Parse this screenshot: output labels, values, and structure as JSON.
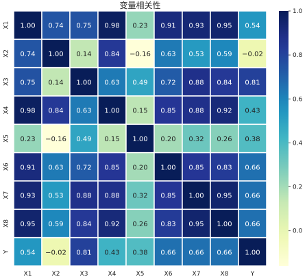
{
  "chart_data": {
    "type": "heatmap",
    "title": "变量相关性",
    "x_labels": [
      "X1",
      "X2",
      "X3",
      "X4",
      "X5",
      "X6",
      "X7",
      "X8",
      "Y"
    ],
    "y_labels": [
      "X1",
      "X2",
      "X3",
      "X4",
      "X5",
      "X6",
      "X7",
      "X8",
      "Y"
    ],
    "values": [
      [
        1.0,
        0.74,
        0.75,
        0.98,
        0.23,
        0.91,
        0.93,
        0.95,
        0.54
      ],
      [
        0.74,
        1.0,
        0.14,
        0.84,
        -0.16,
        0.63,
        0.53,
        0.59,
        -0.02
      ],
      [
        0.75,
        0.14,
        1.0,
        0.63,
        0.49,
        0.72,
        0.88,
        0.84,
        0.81
      ],
      [
        0.98,
        0.84,
        0.63,
        1.0,
        0.15,
        0.85,
        0.88,
        0.92,
        0.43
      ],
      [
        0.23,
        -0.16,
        0.49,
        0.15,
        1.0,
        0.2,
        0.32,
        0.26,
        0.38
      ],
      [
        0.91,
        0.63,
        0.72,
        0.85,
        0.2,
        1.0,
        0.85,
        0.83,
        0.66
      ],
      [
        0.93,
        0.53,
        0.88,
        0.88,
        0.32,
        0.85,
        1.0,
        0.95,
        0.66
      ],
      [
        0.95,
        0.59,
        0.84,
        0.92,
        0.26,
        0.83,
        0.95,
        1.0,
        0.66
      ],
      [
        0.54,
        -0.02,
        0.81,
        0.43,
        0.38,
        0.66,
        0.66,
        0.66,
        1.0
      ]
    ],
    "cell_labels": [
      [
        "1.00",
        "0.74",
        "0.75",
        "0.98",
        "0.23",
        "0.91",
        "0.93",
        "0.95",
        "0.54"
      ],
      [
        "0.74",
        "1.00",
        "0.14",
        "0.84",
        "−0.16",
        "0.63",
        "0.53",
        "0.59",
        "−0.02"
      ],
      [
        "0.75",
        "0.14",
        "1.00",
        "0.63",
        "0.49",
        "0.72",
        "0.88",
        "0.84",
        "0.81"
      ],
      [
        "0.98",
        "0.84",
        "0.63",
        "1.00",
        "0.15",
        "0.85",
        "0.88",
        "0.92",
        "0.43"
      ],
      [
        "0.23",
        "−0.16",
        "0.49",
        "0.15",
        "1.00",
        "0.20",
        "0.32",
        "0.26",
        "0.38"
      ],
      [
        "0.91",
        "0.63",
        "0.72",
        "0.85",
        "0.20",
        "1.00",
        "0.85",
        "0.83",
        "0.66"
      ],
      [
        "0.93",
        "0.53",
        "0.88",
        "0.88",
        "0.32",
        "0.85",
        "1.00",
        "0.95",
        "0.66"
      ],
      [
        "0.95",
        "0.59",
        "0.84",
        "0.92",
        "0.26",
        "0.83",
        "0.95",
        "1.00",
        "0.66"
      ],
      [
        "0.54",
        "−0.02",
        "0.81",
        "0.43",
        "0.38",
        "0.66",
        "0.66",
        "0.66",
        "1.00"
      ]
    ],
    "colormap": "YlGnBu",
    "vmin": -0.16,
    "vmax": 1.0,
    "colorbar": {
      "ticks": [
        0.0,
        0.2,
        0.4,
        0.6,
        0.8,
        1.0
      ],
      "tick_labels": [
        "0.0",
        "0.2",
        "0.4",
        "0.6",
        "0.8",
        "1.0"
      ],
      "placement": "right"
    },
    "grid_lines": true,
    "grid_color": "#ffffff"
  }
}
